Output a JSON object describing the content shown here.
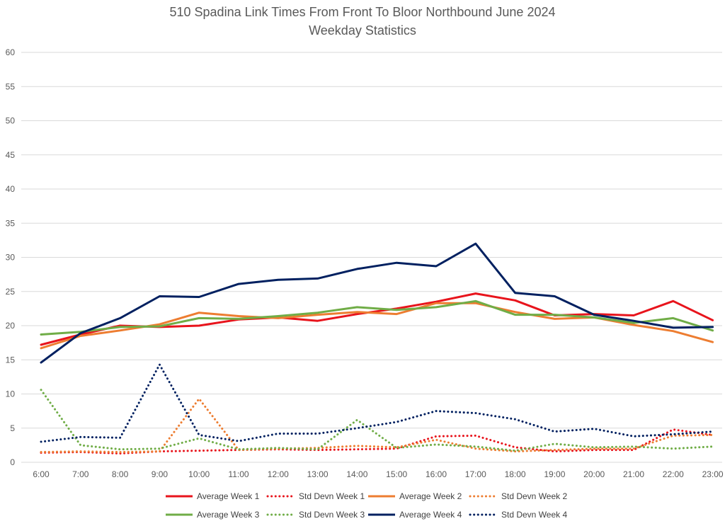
{
  "chart_data": {
    "type": "line",
    "title": "510 Spadina Link Times From Front To Bloor Northbound June 2024",
    "subtitle": "Weekday Statistics",
    "xlabel": "",
    "ylabel": "",
    "categories": [
      "6:00",
      "7:00",
      "8:00",
      "9:00",
      "10:00",
      "11:00",
      "12:00",
      "13:00",
      "14:00",
      "15:00",
      "16:00",
      "17:00",
      "18:00",
      "19:00",
      "20:00",
      "21:00",
      "22:00",
      "23:00"
    ],
    "ylim": [
      0,
      60
    ],
    "yticks": [
      0,
      5,
      10,
      15,
      20,
      25,
      30,
      35,
      40,
      45,
      50,
      55,
      60
    ],
    "grid": true,
    "legend_position": "bottom",
    "series": [
      {
        "name": "Average Week 1",
        "style": "solid",
        "color": "#e8141c",
        "values": [
          17.2,
          18.7,
          20.0,
          19.8,
          20.0,
          20.9,
          21.2,
          20.7,
          21.7,
          22.5,
          23.5,
          24.7,
          23.7,
          21.5,
          21.7,
          21.5,
          23.6,
          20.8
        ]
      },
      {
        "name": "Std Devn Week 1",
        "style": "dotted",
        "color": "#e8141c",
        "values": [
          1.4,
          1.5,
          1.3,
          1.6,
          1.7,
          1.8,
          1.9,
          1.8,
          1.9,
          2.0,
          3.8,
          3.9,
          2.2,
          1.6,
          1.8,
          1.8,
          4.8,
          4.0
        ]
      },
      {
        "name": "Average Week 2",
        "style": "solid",
        "color": "#ed7d31",
        "values": [
          16.7,
          18.5,
          19.3,
          20.2,
          21.9,
          21.4,
          21.1,
          21.6,
          22.0,
          21.7,
          23.3,
          23.3,
          22.0,
          21.0,
          21.2,
          20.1,
          19.2,
          17.6
        ]
      },
      {
        "name": "Std Devn Week 2",
        "style": "dotted",
        "color": "#ed7d31",
        "values": [
          1.5,
          1.6,
          1.5,
          1.6,
          9.3,
          1.8,
          2.0,
          2.1,
          2.4,
          2.2,
          3.3,
          2.0,
          1.6,
          1.8,
          2.0,
          2.0,
          3.9,
          4.0
        ]
      },
      {
        "name": "Average Week 3",
        "style": "solid",
        "color": "#70ad47",
        "values": [
          18.7,
          19.1,
          19.8,
          19.9,
          21.1,
          21.0,
          21.4,
          21.9,
          22.7,
          22.3,
          22.7,
          23.6,
          21.6,
          21.6,
          21.2,
          20.4,
          21.1,
          19.3
        ]
      },
      {
        "name": "Std Devn Week 3",
        "style": "dotted",
        "color": "#70ad47",
        "values": [
          10.6,
          2.5,
          1.9,
          2.0,
          3.5,
          1.9,
          2.1,
          1.9,
          6.2,
          2.1,
          2.6,
          2.3,
          1.7,
          2.7,
          2.2,
          2.3,
          2.0,
          2.3
        ]
      },
      {
        "name": "Average Week 4",
        "style": "solid",
        "color": "#002060",
        "values": [
          14.6,
          18.9,
          21.1,
          24.3,
          24.2,
          26.1,
          26.7,
          26.9,
          28.3,
          29.2,
          28.7,
          32.0,
          24.8,
          24.3,
          21.6,
          20.7,
          19.7,
          19.8
        ]
      },
      {
        "name": "Std Devn Week 4",
        "style": "dotted",
        "color": "#002060",
        "values": [
          3.0,
          3.7,
          3.6,
          14.3,
          4.0,
          3.1,
          4.2,
          4.2,
          5.0,
          5.9,
          7.5,
          7.2,
          6.3,
          4.5,
          4.9,
          3.8,
          4.1,
          4.5
        ]
      }
    ]
  }
}
